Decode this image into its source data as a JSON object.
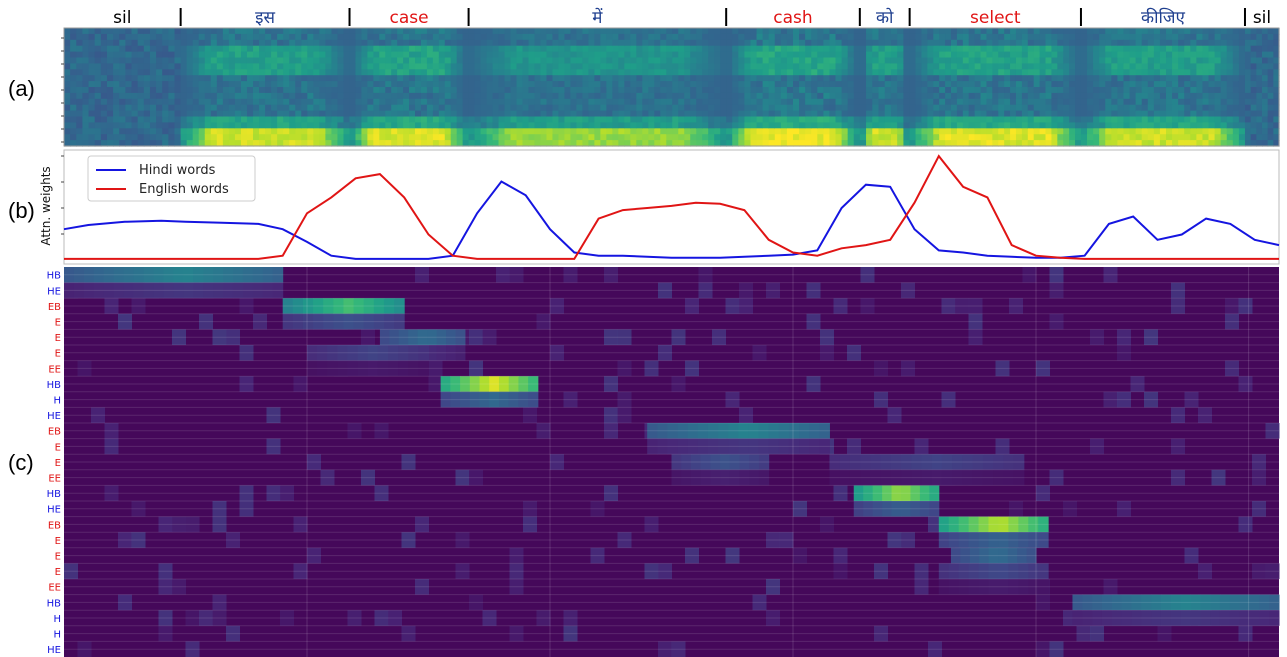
{
  "panel_labels": [
    "(a)",
    "(b)",
    "(c)"
  ],
  "colors": {
    "hindi": "#1515e0",
    "english": "#e01515",
    "sil": "#000000",
    "hindi_word": "#1f3f8f"
  },
  "words": [
    {
      "text": "sil",
      "lang": "sil",
      "start": 0.0,
      "end": 0.096
    },
    {
      "text": "इस",
      "lang": "hindi",
      "start": 0.096,
      "end": 0.235
    },
    {
      "text": "case",
      "lang": "english",
      "start": 0.235,
      "end": 0.333
    },
    {
      "text": "में",
      "lang": "hindi",
      "start": 0.333,
      "end": 0.545
    },
    {
      "text": "cash",
      "lang": "english",
      "start": 0.545,
      "end": 0.655
    },
    {
      "text": "को",
      "lang": "hindi",
      "start": 0.655,
      "end": 0.696
    },
    {
      "text": "select",
      "lang": "english",
      "start": 0.696,
      "end": 0.837
    },
    {
      "text": "कीजिए",
      "lang": "hindi",
      "start": 0.837,
      "end": 0.972
    },
    {
      "text": "sil",
      "lang": "sil",
      "start": 0.972,
      "end": 1.0
    }
  ],
  "chart_data": [
    {
      "type": "heatmap",
      "panel": "(a)",
      "title": "",
      "bands": [
        {
          "start": 0.0,
          "end": 0.096,
          "energy": 0.12
        },
        {
          "start": 0.096,
          "end": 0.235,
          "energy": 0.75
        },
        {
          "start": 0.235,
          "end": 0.333,
          "energy": 0.8
        },
        {
          "start": 0.333,
          "end": 0.545,
          "energy": 0.6
        },
        {
          "start": 0.545,
          "end": 0.655,
          "energy": 0.85
        },
        {
          "start": 0.655,
          "end": 0.696,
          "energy": 0.75
        },
        {
          "start": 0.696,
          "end": 0.837,
          "energy": 0.8
        },
        {
          "start": 0.837,
          "end": 0.972,
          "energy": 0.75
        },
        {
          "start": 0.972,
          "end": 1.0,
          "energy": 0.2
        }
      ]
    },
    {
      "type": "line",
      "panel": "(b)",
      "ylabel": "Attn. weights",
      "legend": "top-left",
      "x": [
        0.0,
        0.02,
        0.05,
        0.08,
        0.1,
        0.13,
        0.16,
        0.18,
        0.2,
        0.22,
        0.24,
        0.26,
        0.28,
        0.3,
        0.32,
        0.34,
        0.36,
        0.38,
        0.4,
        0.42,
        0.44,
        0.46,
        0.48,
        0.5,
        0.52,
        0.54,
        0.56,
        0.58,
        0.6,
        0.62,
        0.64,
        0.66,
        0.68,
        0.7,
        0.72,
        0.74,
        0.76,
        0.78,
        0.8,
        0.82,
        0.84,
        0.86,
        0.88,
        0.9,
        0.92,
        0.94,
        0.96,
        0.98,
        1.0
      ],
      "series": [
        {
          "name": "Hindi words",
          "color": "#1515e0",
          "values": [
            0.3,
            0.34,
            0.37,
            0.38,
            0.37,
            0.36,
            0.35,
            0.3,
            0.18,
            0.05,
            0.02,
            0.02,
            0.02,
            0.02,
            0.05,
            0.45,
            0.75,
            0.62,
            0.3,
            0.08,
            0.05,
            0.05,
            0.04,
            0.03,
            0.03,
            0.03,
            0.04,
            0.05,
            0.06,
            0.1,
            0.5,
            0.72,
            0.7,
            0.3,
            0.1,
            0.08,
            0.05,
            0.04,
            0.03,
            0.03,
            0.05,
            0.35,
            0.42,
            0.2,
            0.25,
            0.4,
            0.35,
            0.2,
            0.15
          ]
        },
        {
          "name": "English words",
          "color": "#e01515",
          "values": [
            0.02,
            0.02,
            0.02,
            0.02,
            0.02,
            0.02,
            0.02,
            0.05,
            0.45,
            0.6,
            0.78,
            0.82,
            0.6,
            0.25,
            0.05,
            0.02,
            0.02,
            0.02,
            0.02,
            0.02,
            0.4,
            0.48,
            0.5,
            0.52,
            0.55,
            0.54,
            0.48,
            0.2,
            0.08,
            0.05,
            0.12,
            0.15,
            0.2,
            0.55,
            0.99,
            0.7,
            0.6,
            0.15,
            0.05,
            0.03,
            0.02,
            0.02,
            0.02,
            0.02,
            0.02,
            0.02,
            0.02,
            0.02,
            0.02
          ]
        }
      ]
    },
    {
      "type": "heatmap",
      "panel": "(c)",
      "row_labels": [
        {
          "label": "HB",
          "lang": "hindi"
        },
        {
          "label": "HE",
          "lang": "hindi"
        },
        {
          "label": "EB",
          "lang": "english"
        },
        {
          "label": "E",
          "lang": "english"
        },
        {
          "label": "E",
          "lang": "english"
        },
        {
          "label": "E",
          "lang": "english"
        },
        {
          "label": "EE",
          "lang": "english"
        },
        {
          "label": "HB",
          "lang": "hindi"
        },
        {
          "label": "H",
          "lang": "hindi"
        },
        {
          "label": "HE",
          "lang": "hindi"
        },
        {
          "label": "EB",
          "lang": "english"
        },
        {
          "label": "E",
          "lang": "english"
        },
        {
          "label": "E",
          "lang": "english"
        },
        {
          "label": "EE",
          "lang": "english"
        },
        {
          "label": "HB",
          "lang": "hindi"
        },
        {
          "label": "HE",
          "lang": "hindi"
        },
        {
          "label": "EB",
          "lang": "english"
        },
        {
          "label": "E",
          "lang": "english"
        },
        {
          "label": "E",
          "lang": "english"
        },
        {
          "label": "E",
          "lang": "english"
        },
        {
          "label": "EE",
          "lang": "english"
        },
        {
          "label": "HB",
          "lang": "hindi"
        },
        {
          "label": "H",
          "lang": "hindi"
        },
        {
          "label": "H",
          "lang": "hindi"
        },
        {
          "label": "HE",
          "lang": "hindi"
        }
      ],
      "hotspots": [
        {
          "row": 0,
          "start": 0.0,
          "end": 0.18,
          "value": 0.45
        },
        {
          "row": 2,
          "start": 0.18,
          "end": 0.28,
          "value": 0.7
        },
        {
          "row": 4,
          "start": 0.26,
          "end": 0.33,
          "value": 0.35
        },
        {
          "row": 7,
          "start": 0.31,
          "end": 0.39,
          "value": 0.95
        },
        {
          "row": 10,
          "start": 0.48,
          "end": 0.63,
          "value": 0.45
        },
        {
          "row": 12,
          "start": 0.5,
          "end": 0.58,
          "value": 0.25
        },
        {
          "row": 14,
          "start": 0.65,
          "end": 0.72,
          "value": 0.85
        },
        {
          "row": 16,
          "start": 0.72,
          "end": 0.81,
          "value": 0.9
        },
        {
          "row": 18,
          "start": 0.73,
          "end": 0.8,
          "value": 0.35
        },
        {
          "row": 21,
          "start": 0.83,
          "end": 1.0,
          "value": 0.45
        },
        {
          "row": 12,
          "start": 0.63,
          "end": 0.79,
          "value": 0.2
        },
        {
          "row": 5,
          "start": 0.2,
          "end": 0.3,
          "value": 0.2
        },
        {
          "row": 19,
          "start": 0.72,
          "end": 0.81,
          "value": 0.22
        }
      ]
    }
  ]
}
